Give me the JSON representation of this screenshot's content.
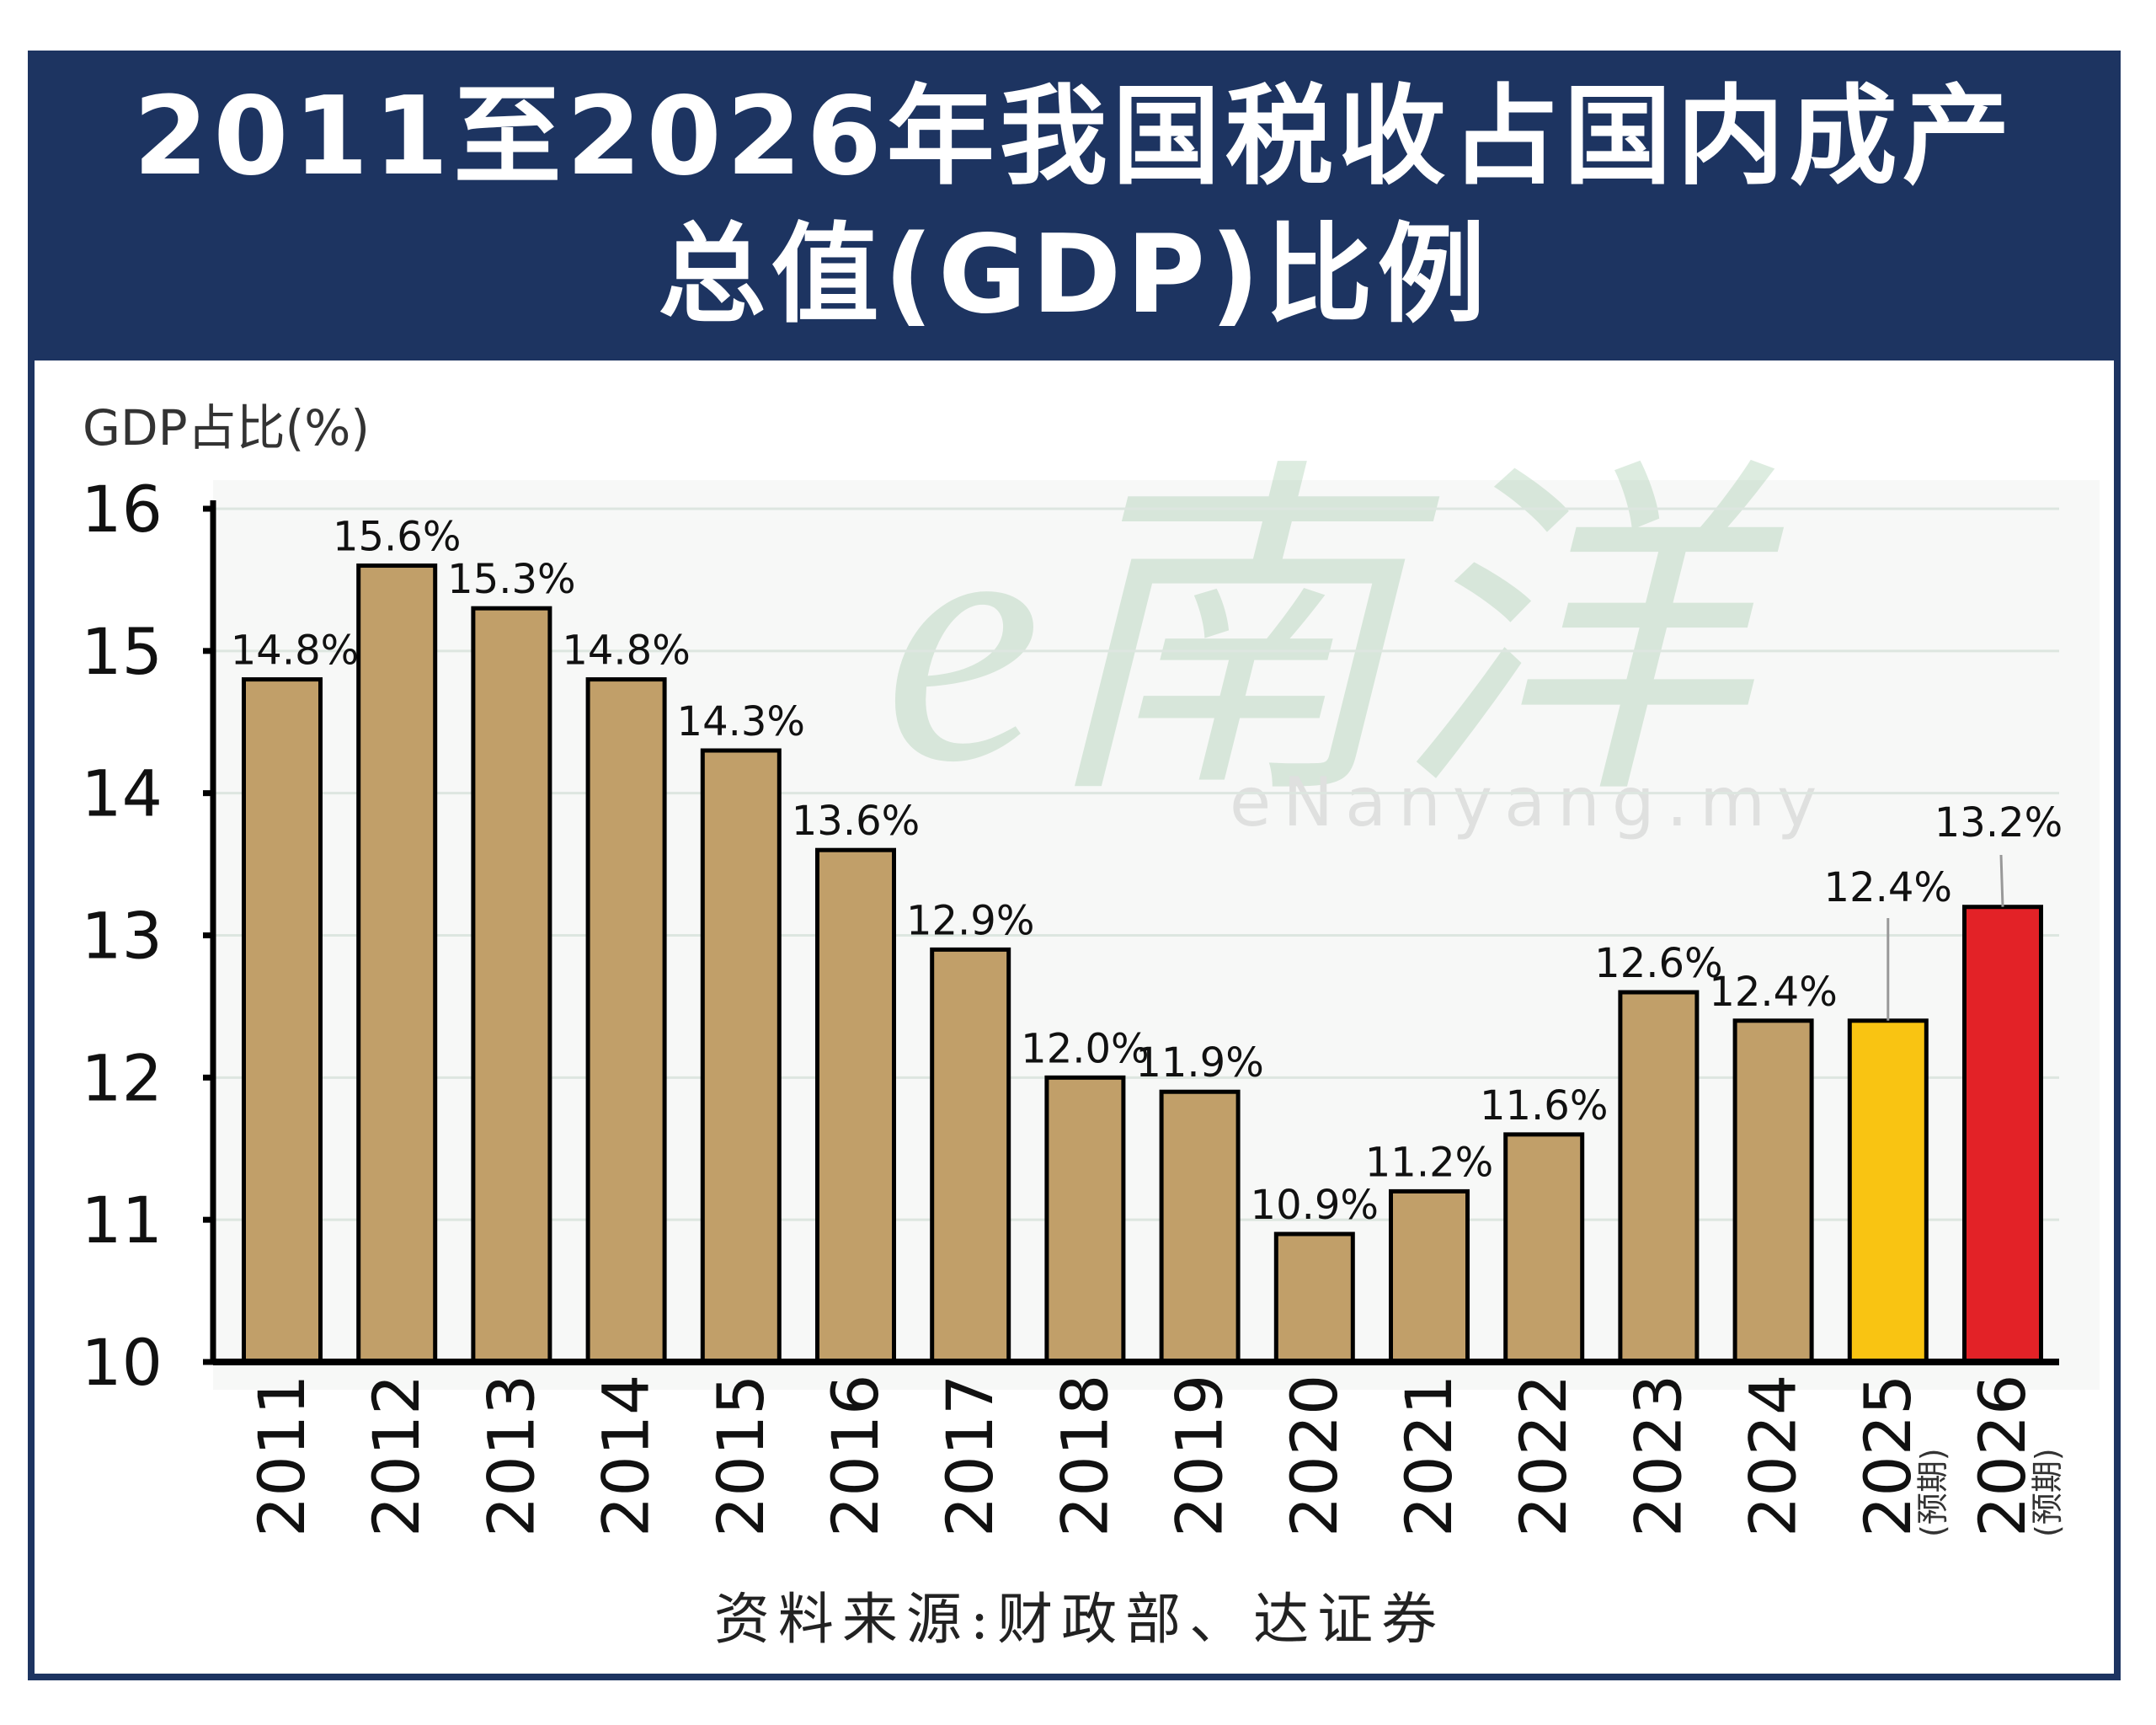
{
  "title": {
    "line1": "2011至2026年我国税收占国内成产",
    "line2": "总值(GDP)比例"
  },
  "watermark": {
    "logo": "e南洋",
    "site": "eNanyang.my"
  },
  "source": "资料来源:财政部、达证券",
  "colors": {
    "header": "#1d3461",
    "bar": "#c19f69",
    "forecast_2025": "#f9c412",
    "forecast_2026": "#e32227"
  },
  "chart_data": {
    "type": "bar",
    "ylabel": "GDP占比(%)",
    "ylim": [
      10,
      16
    ],
    "yticks": [
      "10",
      "11",
      "12",
      "13",
      "14",
      "15",
      "16"
    ],
    "grid": true,
    "categories": [
      "2011",
      "2012",
      "2013",
      "2014",
      "2015",
      "2016",
      "2017",
      "2018",
      "2019",
      "2020",
      "2021",
      "2022",
      "2023",
      "2024",
      "2025",
      "2026"
    ],
    "category_notes": [
      "",
      "",
      "",
      "",
      "",
      "",
      "",
      "",
      "",
      "",
      "",
      "",
      "",
      "",
      "(预期)",
      "(预期)"
    ],
    "values": [
      14.8,
      15.6,
      15.3,
      14.8,
      14.3,
      13.6,
      12.9,
      12.0,
      11.9,
      10.9,
      11.2,
      11.6,
      12.6,
      12.4,
      12.4,
      13.2
    ],
    "data_labels": [
      "14.8%",
      "15.6%",
      "15.3%",
      "14.8%",
      "14.3%",
      "13.6%",
      "12.9%",
      "12.0%",
      "11.9%",
      "10.9%",
      "11.2%",
      "11.6%",
      "12.6%",
      "12.4%",
      "12.4%",
      "13.2%"
    ]
  }
}
